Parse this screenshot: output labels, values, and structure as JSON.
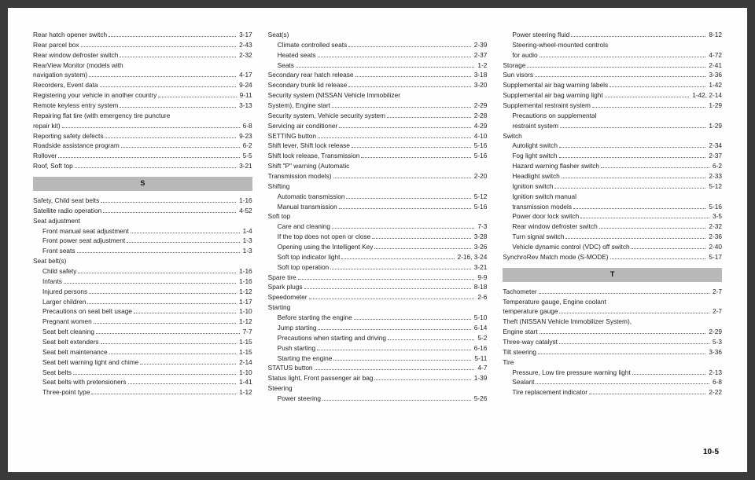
{
  "pageNumber": "10-5",
  "columns": [
    {
      "items": [
        {
          "type": "entry",
          "label": "Rear hatch opener switch",
          "page": "3-17"
        },
        {
          "type": "entry",
          "label": "Rear parcel box",
          "page": "2-43"
        },
        {
          "type": "entry",
          "label": "Rear window defroster switch",
          "page": "2-32"
        },
        {
          "type": "sub",
          "label": "RearView Monitor (models with"
        },
        {
          "type": "entry",
          "label": "navigation system)",
          "page": "4-17"
        },
        {
          "type": "entry",
          "label": "Recorders, Event data",
          "page": "9-24"
        },
        {
          "type": "entry",
          "label": "Registering your vehicle in another country",
          "page": "9-11"
        },
        {
          "type": "entry",
          "label": "Remote keyless entry system",
          "page": "3-13"
        },
        {
          "type": "sub",
          "label": "Repairing flat tire (with emergency tire puncture"
        },
        {
          "type": "entry",
          "label": "repair kit)",
          "page": "6-8"
        },
        {
          "type": "entry",
          "label": "Reporting safety defects",
          "page": "9-23"
        },
        {
          "type": "entry",
          "label": "Roadside assistance program",
          "page": "6-2"
        },
        {
          "type": "entry",
          "label": "Rollover",
          "page": "5-5"
        },
        {
          "type": "entry",
          "label": "Roof, Soft top",
          "page": "3-21"
        },
        {
          "type": "head",
          "label": "S"
        },
        {
          "type": "entry",
          "label": "Safety, Child seat belts",
          "page": "1-16"
        },
        {
          "type": "entry",
          "label": "Satellite radio operation",
          "page": "4-52"
        },
        {
          "type": "sub",
          "label": "Seat adjustment"
        },
        {
          "type": "entry",
          "indent": true,
          "label": "Front manual seat adjustment",
          "page": "1-4"
        },
        {
          "type": "entry",
          "indent": true,
          "label": "Front power seat adjustment",
          "page": "1-3"
        },
        {
          "type": "entry",
          "indent": true,
          "label": "Front seats",
          "page": "1-3"
        },
        {
          "type": "sub",
          "label": "Seat belt(s)"
        },
        {
          "type": "entry",
          "indent": true,
          "label": "Child safety",
          "page": "1-16"
        },
        {
          "type": "entry",
          "indent": true,
          "label": "Infants",
          "page": "1-16"
        },
        {
          "type": "entry",
          "indent": true,
          "label": "Injured persons",
          "page": "1-12"
        },
        {
          "type": "entry",
          "indent": true,
          "label": "Larger children",
          "page": "1-17"
        },
        {
          "type": "entry",
          "indent": true,
          "label": "Precautions on seat belt usage",
          "page": "1-10"
        },
        {
          "type": "entry",
          "indent": true,
          "label": "Pregnant women",
          "page": "1-12"
        },
        {
          "type": "entry",
          "indent": true,
          "label": "Seat belt cleaning",
          "page": "7-7"
        },
        {
          "type": "entry",
          "indent": true,
          "label": "Seat belt extenders",
          "page": "1-15"
        },
        {
          "type": "entry",
          "indent": true,
          "label": "Seat belt maintenance",
          "page": "1-15"
        },
        {
          "type": "entry",
          "indent": true,
          "label": "Seat belt warning light and chime",
          "page": "2-14"
        },
        {
          "type": "entry",
          "indent": true,
          "label": "Seat belts",
          "page": "1-10"
        },
        {
          "type": "entry",
          "indent": true,
          "label": "Seat belts with pretensioners",
          "page": "1-41"
        },
        {
          "type": "entry",
          "indent": true,
          "label": "Three-point type",
          "page": "1-12"
        }
      ]
    },
    {
      "items": [
        {
          "type": "sub",
          "label": "Seat(s)"
        },
        {
          "type": "entry",
          "indent": true,
          "label": "Climate controlled seats",
          "page": "2-39"
        },
        {
          "type": "entry",
          "indent": true,
          "label": "Heated seats",
          "page": "2-37"
        },
        {
          "type": "entry",
          "indent": true,
          "label": "Seats",
          "page": "1-2"
        },
        {
          "type": "entry",
          "label": "Secondary rear hatch release",
          "page": "3-18"
        },
        {
          "type": "entry",
          "label": "Secondary trunk lid release",
          "page": "3-20"
        },
        {
          "type": "sub",
          "label": "Security system (NISSAN Vehicle Immobilizer"
        },
        {
          "type": "entry",
          "label": "System), Engine start",
          "page": "2-29"
        },
        {
          "type": "entry",
          "label": "Security system, Vehicle security system",
          "page": "2-28"
        },
        {
          "type": "entry",
          "label": "Servicing air conditioner",
          "page": "4-29"
        },
        {
          "type": "entry",
          "label": "SETTING button",
          "page": "4-10"
        },
        {
          "type": "entry",
          "label": "Shift lever, Shift lock release",
          "page": "5-16"
        },
        {
          "type": "entry",
          "label": "Shift lock release, Transmission",
          "page": "5-16"
        },
        {
          "type": "sub",
          "label": "Shift \"P\" warning (Automatic"
        },
        {
          "type": "entry",
          "label": "Transmission models)",
          "page": "2-20"
        },
        {
          "type": "sub",
          "label": "Shifting"
        },
        {
          "type": "entry",
          "indent": true,
          "label": "Automatic transmission",
          "page": "5-12"
        },
        {
          "type": "entry",
          "indent": true,
          "label": "Manual transmission",
          "page": "5-16"
        },
        {
          "type": "sub",
          "label": "Soft top"
        },
        {
          "type": "entry",
          "indent": true,
          "label": "Care and cleaning",
          "page": "7-3"
        },
        {
          "type": "entry",
          "indent": true,
          "label": "If the top does not open or close",
          "page": "3-28"
        },
        {
          "type": "entry",
          "indent": true,
          "label": "Opening using the Intelligent Key",
          "page": "3-26"
        },
        {
          "type": "entry",
          "indent": true,
          "label": "Soft top indicator light",
          "page": "2-16, 3-24"
        },
        {
          "type": "entry",
          "indent": true,
          "label": "Soft top operation",
          "page": "3-21"
        },
        {
          "type": "entry",
          "label": "Spare tire",
          "page": "9-9"
        },
        {
          "type": "entry",
          "label": "Spark plugs",
          "page": "8-18"
        },
        {
          "type": "entry",
          "label": "Speedometer",
          "page": "2-6"
        },
        {
          "type": "sub",
          "label": "Starting"
        },
        {
          "type": "entry",
          "indent": true,
          "label": "Before starting the engine",
          "page": "5-10"
        },
        {
          "type": "entry",
          "indent": true,
          "label": "Jump starting",
          "page": "6-14"
        },
        {
          "type": "entry",
          "indent": true,
          "label": "Precautions when starting and driving",
          "page": "5-2"
        },
        {
          "type": "entry",
          "indent": true,
          "label": "Push starting",
          "page": "6-16"
        },
        {
          "type": "entry",
          "indent": true,
          "label": "Starting the engine",
          "page": "5-11"
        },
        {
          "type": "entry",
          "label": "STATUS button",
          "page": "4-7"
        },
        {
          "type": "entry",
          "label": "Status light, Front passenger air bag",
          "page": "1-39"
        },
        {
          "type": "sub",
          "label": "Steering"
        },
        {
          "type": "entry",
          "indent": true,
          "label": "Power steering",
          "page": "5-26"
        }
      ]
    },
    {
      "items": [
        {
          "type": "entry",
          "indent": true,
          "label": "Power steering fluid",
          "page": "8-12"
        },
        {
          "type": "sub",
          "indent": true,
          "label": "Steering-wheel-mounted controls"
        },
        {
          "type": "entry",
          "indent": true,
          "label": "for audio",
          "page": "4-72"
        },
        {
          "type": "entry",
          "label": "Storage",
          "page": "2-41"
        },
        {
          "type": "entry",
          "label": "Sun visors",
          "page": "3-36"
        },
        {
          "type": "entry",
          "label": "Supplemental air bag warning labels",
          "page": "1-42"
        },
        {
          "type": "entry",
          "label": "Supplemental air bag warning light",
          "page": "1-42, 2-14"
        },
        {
          "type": "entry",
          "label": "Supplemental restraint system",
          "page": "1-29"
        },
        {
          "type": "sub",
          "indent": true,
          "label": "Precautions on supplemental"
        },
        {
          "type": "entry",
          "indent": true,
          "label": "restraint system",
          "page": "1-29"
        },
        {
          "type": "sub",
          "label": "Switch"
        },
        {
          "type": "entry",
          "indent": true,
          "label": "Autolight switch",
          "page": "2-34"
        },
        {
          "type": "entry",
          "indent": true,
          "label": "Fog light switch",
          "page": "2-37"
        },
        {
          "type": "entry",
          "indent": true,
          "label": "Hazard warning flasher switch",
          "page": "6-2"
        },
        {
          "type": "entry",
          "indent": true,
          "label": "Headlight switch",
          "page": "2-33"
        },
        {
          "type": "entry",
          "indent": true,
          "label": "Ignition switch",
          "page": "5-12"
        },
        {
          "type": "sub",
          "indent": true,
          "label": "Ignition switch manual"
        },
        {
          "type": "entry",
          "indent": true,
          "label": "transmission models",
          "page": "5-16"
        },
        {
          "type": "entry",
          "indent": true,
          "label": "Power door lock switch",
          "page": "3-5"
        },
        {
          "type": "entry",
          "indent": true,
          "label": "Rear window defroster switch",
          "page": "2-32"
        },
        {
          "type": "entry",
          "indent": true,
          "label": "Turn signal switch",
          "page": "2-36"
        },
        {
          "type": "entry",
          "indent": true,
          "label": "Vehicle dynamic control (VDC) off switch",
          "page": "2-40"
        },
        {
          "type": "entry",
          "label": "SynchroRev Match mode (S-MODE)",
          "page": "5-17"
        },
        {
          "type": "head",
          "label": "T"
        },
        {
          "type": "entry",
          "label": "Tachometer",
          "page": "2-7"
        },
        {
          "type": "sub",
          "label": "Temperature gauge, Engine coolant"
        },
        {
          "type": "entry",
          "label": "temperature gauge",
          "page": "2-7"
        },
        {
          "type": "sub",
          "label": "Theft (NISSAN Vehicle Immobilizer System),"
        },
        {
          "type": "entry",
          "label": "Engine start",
          "page": "2-29"
        },
        {
          "type": "entry",
          "label": "Three-way catalyst",
          "page": "5-3"
        },
        {
          "type": "entry",
          "label": "Tilt steering",
          "page": "3-36"
        },
        {
          "type": "sub",
          "label": "Tire"
        },
        {
          "type": "entry",
          "indent": true,
          "label": "Pressure, Low tire pressure warning light",
          "page": "2-13"
        },
        {
          "type": "entry",
          "indent": true,
          "label": "Sealant",
          "page": "6-8"
        },
        {
          "type": "entry",
          "indent": true,
          "label": "Tire replacement indicator",
          "page": "2-22"
        }
      ]
    }
  ]
}
